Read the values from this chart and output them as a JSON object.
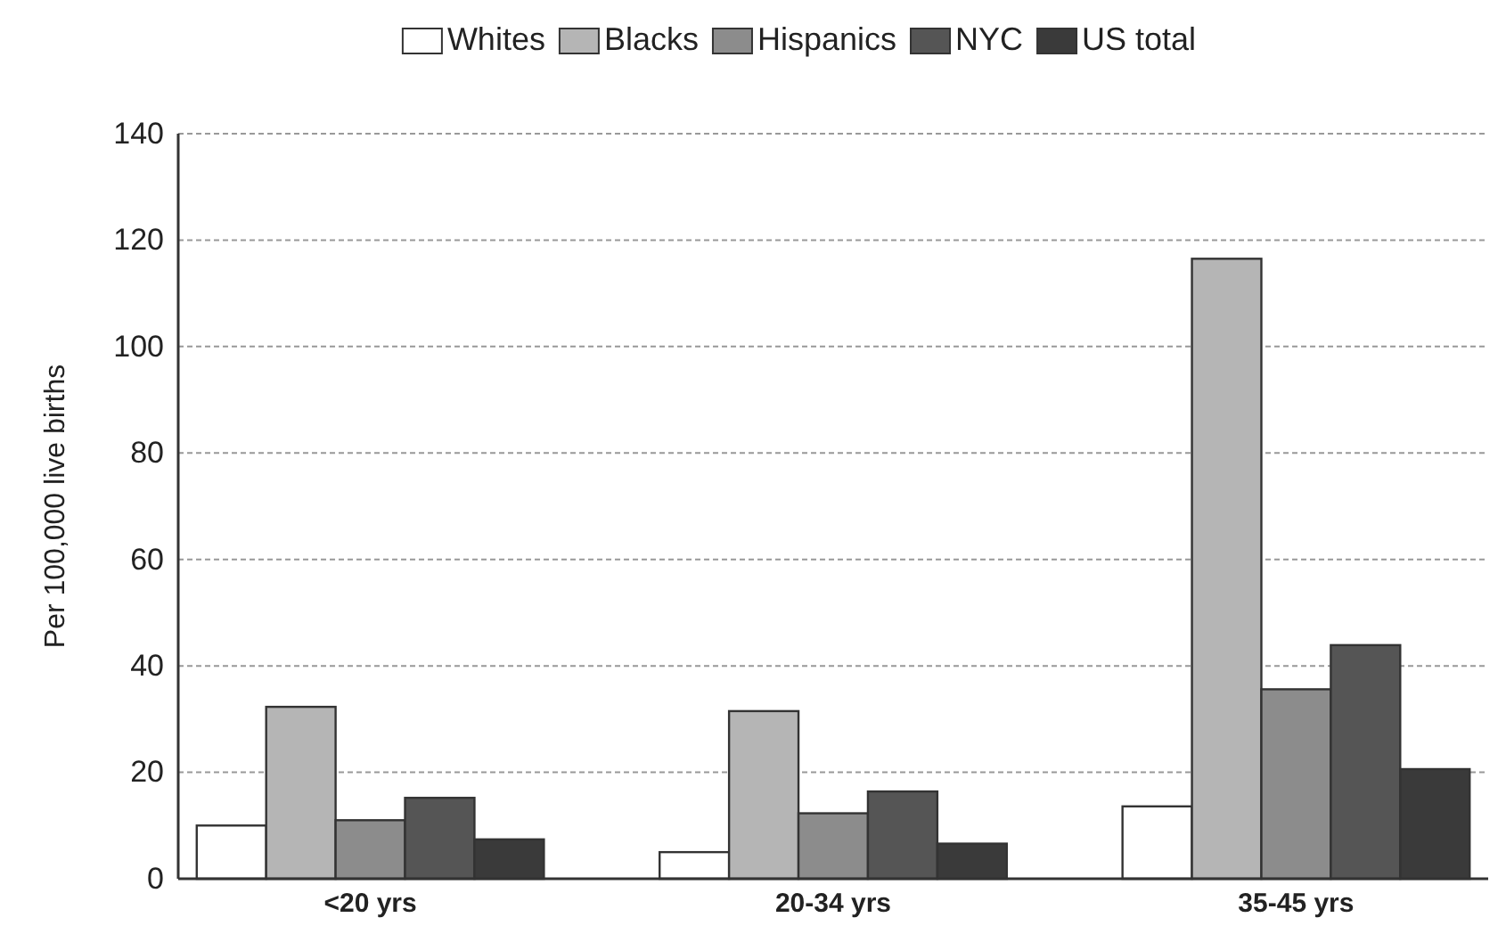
{
  "chart_data": {
    "type": "bar",
    "ylabel": "Per 100,000 live births",
    "categories": [
      "<20 yrs",
      "20-34 yrs",
      "35-45 yrs"
    ],
    "series": [
      {
        "name": "Whites",
        "color": "#ffffff",
        "values": [
          10,
          5,
          13.6
        ]
      },
      {
        "name": "Blacks",
        "color": "#b5b5b5",
        "values": [
          32.3,
          31.5,
          116.5
        ]
      },
      {
        "name": "Hispanics",
        "color": "#8c8c8c",
        "values": [
          11,
          12.3,
          35.6
        ]
      },
      {
        "name": "NYC",
        "color": "#555555",
        "values": [
          15.2,
          16.4,
          43.9
        ]
      },
      {
        "name": "US total",
        "color": "#3a3a3a",
        "values": [
          7.4,
          6.6,
          20.6
        ]
      }
    ],
    "ylim": [
      0,
      140
    ],
    "yticks": [
      0,
      20,
      40,
      60,
      80,
      100,
      120,
      140
    ],
    "grid": "y",
    "legend": "top"
  }
}
